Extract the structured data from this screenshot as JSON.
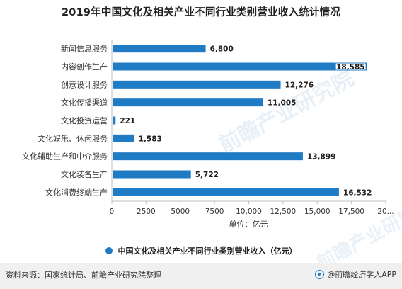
{
  "chart_data": {
    "type": "bar",
    "orientation": "horizontal",
    "title": "2019年中国文化及相关产业不同行业类别营业收入统计情况",
    "categories": [
      "新闻信息服务",
      "内容创作生产",
      "创意设计服务",
      "文化传播渠道",
      "文化投资运营",
      "文化娱乐、休闲服务",
      "文化辅助生产和中介服务",
      "文化装备生产",
      "文化消费终端生产"
    ],
    "series": [
      {
        "name": "中国文化及相关产业不同行业类别营业收入（亿元）",
        "values": [
          6800,
          18585,
          12276,
          11005,
          221,
          1583,
          13899,
          5722,
          16532
        ],
        "labels": [
          "6,800",
          "18,585",
          "12,276",
          "11,005",
          "221",
          "1,583",
          "13,899",
          "5,722",
          "16,532"
        ]
      }
    ],
    "x_ticks": [
      "0",
      "2500",
      "5000",
      "7500",
      "10,000",
      "12,500",
      "15,000",
      "17,500",
      "20..."
    ],
    "xlim": [
      0,
      20000
    ],
    "xlabel": "单位：亿元",
    "ylabel": "",
    "grid": false,
    "legend": "bottom",
    "bar_color": "#1f7bc4"
  },
  "footer": {
    "source": "资料来源：国家统计局、前瞻产业研究院整理",
    "brand": "@前瞻经济学人APP"
  },
  "watermark": "前瞻产业研究院"
}
